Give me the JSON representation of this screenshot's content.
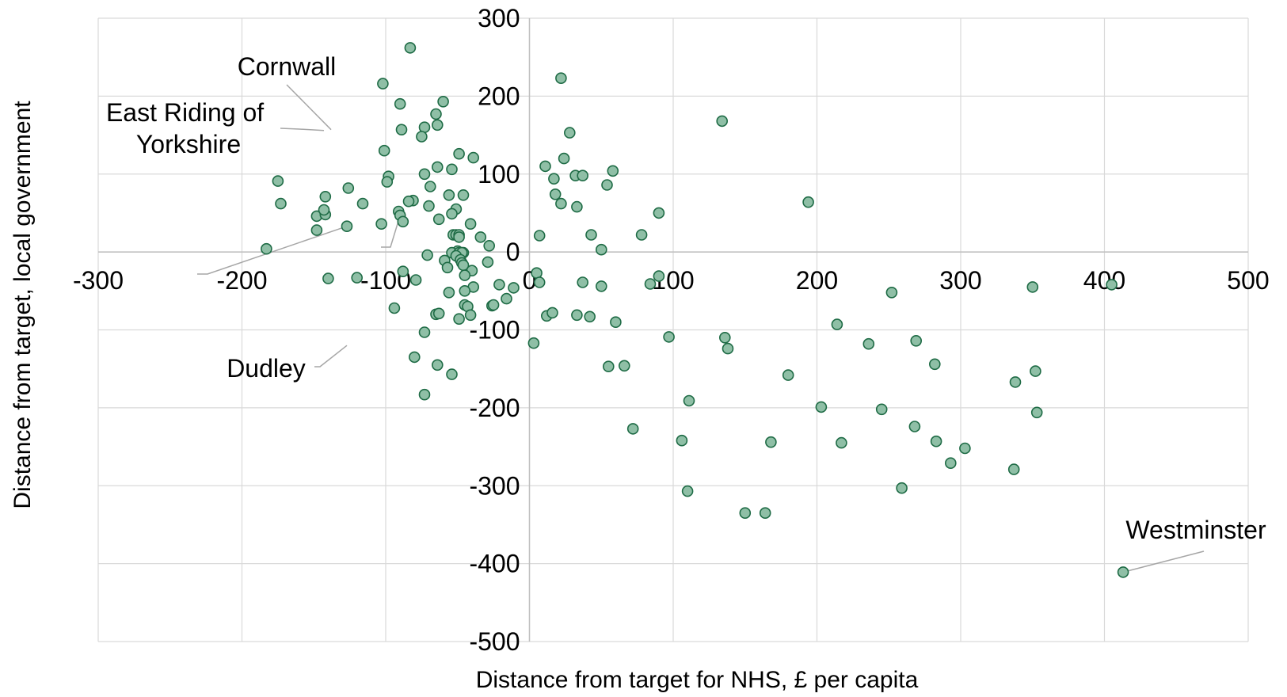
{
  "chart_data": {
    "type": "scatter",
    "xlabel": "Distance from target for NHS, £ per capita",
    "ylabel": "Distance from target, local government",
    "xlim": [
      -300,
      500
    ],
    "ylim": [
      -500,
      300
    ],
    "xticks": [
      -300,
      -200,
      -100,
      0,
      100,
      200,
      300,
      400,
      500
    ],
    "yticks": [
      -500,
      -400,
      -300,
      -200,
      -100,
      0,
      100,
      200,
      300
    ],
    "xtick_labels": [
      "-300",
      "-200",
      "-100",
      "0",
      "100",
      "200",
      "300",
      "400",
      "500"
    ],
    "ytick_labels": [
      "-500",
      "-400",
      "-300",
      "-200",
      "-100",
      "0",
      "100",
      "200",
      "300"
    ],
    "grid": true,
    "marker_color": "#8fbfa6",
    "marker_edge_color": "#1e6b45",
    "grid_color": "#d9d9d9",
    "points": [
      [
        -83,
        262
      ],
      [
        22,
        223
      ],
      [
        -102,
        216
      ],
      [
        -90,
        190
      ],
      [
        -60,
        193
      ],
      [
        -65,
        177
      ],
      [
        -73,
        160
      ],
      [
        -64,
        163
      ],
      [
        -89,
        157
      ],
      [
        -75,
        148
      ],
      [
        28,
        153
      ],
      [
        134,
        168
      ],
      [
        -101,
        130
      ],
      [
        -49,
        126
      ],
      [
        -39,
        121
      ],
      [
        24,
        120
      ],
      [
        -98,
        97
      ],
      [
        -99,
        90
      ],
      [
        -73,
        100
      ],
      [
        -64,
        109
      ],
      [
        -54,
        106
      ],
      [
        11,
        110
      ],
      [
        17,
        94
      ],
      [
        32,
        98
      ],
      [
        37,
        98
      ],
      [
        58,
        104
      ],
      [
        54,
        86
      ],
      [
        -175,
        91
      ],
      [
        -126,
        82
      ],
      [
        -69,
        84
      ],
      [
        -142,
        71
      ],
      [
        -46,
        73
      ],
      [
        -56,
        73
      ],
      [
        -173,
        62
      ],
      [
        -116,
        62
      ],
      [
        -81,
        66
      ],
      [
        -84,
        65
      ],
      [
        -70,
        59
      ],
      [
        18,
        74
      ],
      [
        22,
        62
      ],
      [
        33,
        58
      ],
      [
        -51,
        55
      ],
      [
        -54,
        49
      ],
      [
        -91,
        52
      ],
      [
        -90,
        47
      ],
      [
        -88,
        39
      ],
      [
        -148,
        46
      ],
      [
        -142,
        48
      ],
      [
        -143,
        54
      ],
      [
        -103,
        36
      ],
      [
        -127,
        33
      ],
      [
        -148,
        28
      ],
      [
        -63,
        42
      ],
      [
        -41,
        36
      ],
      [
        -53,
        22
      ],
      [
        -51,
        22
      ],
      [
        -49,
        22
      ],
      [
        -49,
        19
      ],
      [
        -34,
        19
      ],
      [
        -28,
        8
      ],
      [
        7,
        21
      ],
      [
        43,
        22
      ],
      [
        50,
        3
      ],
      [
        78,
        22
      ],
      [
        90,
        50
      ],
      [
        194,
        64
      ],
      [
        -183,
        4
      ],
      [
        -50,
        1
      ],
      [
        -54,
        -1
      ],
      [
        -46,
        -1
      ],
      [
        -49,
        -1
      ],
      [
        -71,
        -4
      ],
      [
        -47,
        -1
      ],
      [
        -51,
        -5
      ],
      [
        -29,
        -13
      ],
      [
        -59,
        -11
      ],
      [
        -48,
        -10
      ],
      [
        -47,
        -14
      ],
      [
        -46,
        -17
      ],
      [
        -57,
        -20
      ],
      [
        -40,
        -24
      ],
      [
        -45,
        -30
      ],
      [
        -88,
        -25
      ],
      [
        -140,
        -34
      ],
      [
        -120,
        -33
      ],
      [
        -79,
        -36
      ],
      [
        5,
        -27
      ],
      [
        7,
        -39
      ],
      [
        37,
        -39
      ],
      [
        50,
        -44
      ],
      [
        -21,
        -42
      ],
      [
        -39,
        -45
      ],
      [
        -45,
        -50
      ],
      [
        -56,
        -52
      ],
      [
        -11,
        -46
      ],
      [
        -16,
        -60
      ],
      [
        -45,
        -68
      ],
      [
        -43,
        -70
      ],
      [
        -26,
        -69
      ],
      [
        -25,
        -68
      ],
      [
        -65,
        -80
      ],
      [
        -63,
        -79
      ],
      [
        -41,
        -81
      ],
      [
        -49,
        -86
      ],
      [
        -94,
        -72
      ],
      [
        12,
        -82
      ],
      [
        16,
        -78
      ],
      [
        33,
        -81
      ],
      [
        42,
        -83
      ],
      [
        60,
        -90
      ],
      [
        -73,
        -103
      ],
      [
        90,
        -31
      ],
      [
        84,
        -41
      ],
      [
        252,
        -52
      ],
      [
        350,
        -45
      ],
      [
        405,
        -42
      ],
      [
        97,
        -109
      ],
      [
        136,
        -110
      ],
      [
        138,
        -124
      ],
      [
        3,
        -117
      ],
      [
        -64,
        -145
      ],
      [
        -80,
        -135
      ],
      [
        -54,
        -157
      ],
      [
        55,
        -147
      ],
      [
        66,
        -146
      ],
      [
        -73,
        -183
      ],
      [
        180,
        -158
      ],
      [
        214,
        -93
      ],
      [
        236,
        -118
      ],
      [
        269,
        -114
      ],
      [
        282,
        -144
      ],
      [
        338,
        -167
      ],
      [
        352,
        -153
      ],
      [
        111,
        -191
      ],
      [
        203,
        -199
      ],
      [
        245,
        -202
      ],
      [
        353,
        -206
      ],
      [
        72,
        -227
      ],
      [
        268,
        -224
      ],
      [
        106,
        -242
      ],
      [
        168,
        -244
      ],
      [
        217,
        -245
      ],
      [
        283,
        -243
      ],
      [
        303,
        -252
      ],
      [
        293,
        -271
      ],
      [
        337,
        -279
      ],
      [
        259,
        -303
      ],
      [
        110,
        -307
      ],
      [
        150,
        -335
      ],
      [
        164,
        -335
      ],
      [
        413,
        -411
      ]
    ],
    "annotations": [
      {
        "lines": [
          "Cornwall"
        ]
      },
      {
        "lines": [
          "East Riding of",
          "Yorkshire"
        ]
      },
      {
        "lines": [
          "Dudley"
        ]
      },
      {
        "lines": [
          "Westminster"
        ]
      }
    ],
    "highlight_points": [
      [
        -138,
        157
      ],
      [
        -143,
        156
      ],
      [
        -127,
        -120
      ],
      [
        413,
        -411
      ]
    ]
  }
}
